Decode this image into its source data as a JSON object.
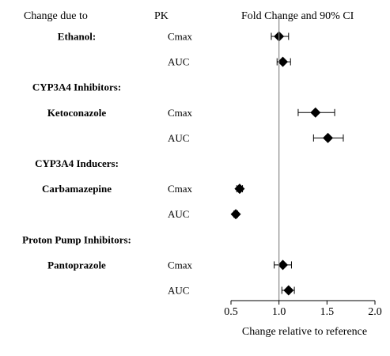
{
  "chart_data": {
    "type": "forest",
    "headers": {
      "change": "Change due to",
      "pk": "PK",
      "ci": "Fold Change and 90% CI"
    },
    "rows": [
      {
        "label": "Ethanol:",
        "pk": "Cmax",
        "estimate": 1.0,
        "ci": [
          0.92,
          1.1
        ]
      },
      {
        "label": "",
        "pk": "AUC",
        "estimate": 1.04,
        "ci": [
          0.98,
          1.12
        ]
      },
      {
        "label": "CYP3A4 Inhibitors:",
        "pk": "",
        "estimate": null,
        "ci": null
      },
      {
        "label": "Ketoconazole",
        "pk": "Cmax",
        "estimate": 1.38,
        "ci": [
          1.2,
          1.58
        ]
      },
      {
        "label": "",
        "pk": "AUC",
        "estimate": 1.51,
        "ci": [
          1.36,
          1.67
        ]
      },
      {
        "label": "CYP3A4 Inducers:",
        "pk": "",
        "estimate": null,
        "ci": null
      },
      {
        "label": "Carbamazepine",
        "pk": "Cmax",
        "estimate": 0.59,
        "ci": [
          0.56,
          0.62
        ]
      },
      {
        "label": "",
        "pk": "AUC",
        "estimate": 0.55,
        "ci": [
          0.53,
          0.57
        ]
      },
      {
        "label": "Proton Pump Inhibitors:",
        "pk": "",
        "estimate": null,
        "ci": null
      },
      {
        "label": "Pantoprazole",
        "pk": "Cmax",
        "estimate": 1.04,
        "ci": [
          0.95,
          1.13
        ]
      },
      {
        "label": "",
        "pk": "AUC",
        "estimate": 1.1,
        "ci": [
          1.03,
          1.16
        ]
      }
    ],
    "xlabel": "Change relative to reference",
    "xlim": [
      0.5,
      2.0
    ],
    "xticks": [
      "0.5",
      "1.0",
      "1.5",
      "2.0"
    ],
    "reference_line": 1.0
  }
}
